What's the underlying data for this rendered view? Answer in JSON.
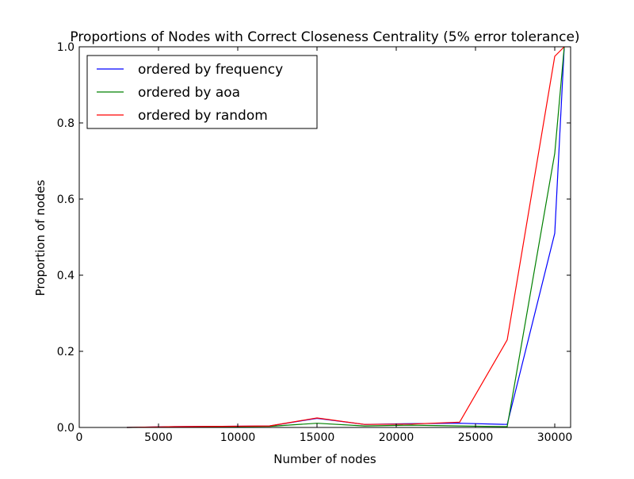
{
  "chart_data": {
    "type": "line",
    "title": "Proportions of Nodes with Correct Closeness Centrality (5% error tolerance)",
    "xlabel": "Number of nodes",
    "ylabel": "Proportion of nodes",
    "xlim": [
      0,
      31000
    ],
    "ylim": [
      0,
      1.0
    ],
    "xticks": [
      0,
      5000,
      10000,
      15000,
      20000,
      25000,
      30000
    ],
    "xtick_labels": [
      "0",
      "5000",
      "10000",
      "15000",
      "20000",
      "25000",
      "30000"
    ],
    "yticks": [
      0,
      0.2,
      0.4,
      0.6,
      0.8,
      1.0
    ],
    "ytick_labels": [
      "0.0",
      "0.2",
      "0.4",
      "0.6",
      "0.8",
      "1.0"
    ],
    "grid": false,
    "legend_position": "top-left",
    "series": [
      {
        "name": "ordered by frequency",
        "color": "#0000ff",
        "x": [
          3000,
          6000,
          9000,
          12000,
          15000,
          18000,
          21000,
          24000,
          27000,
          30000,
          30600
        ],
        "y": [
          0.0,
          0.002,
          0.003,
          0.004,
          0.024,
          0.008,
          0.01,
          0.011,
          0.008,
          0.51,
          1.0
        ]
      },
      {
        "name": "ordered by aoa",
        "color": "#008000",
        "x": [
          3000,
          6000,
          9000,
          12000,
          15000,
          18000,
          21000,
          24000,
          27000,
          30000,
          30600
        ],
        "y": [
          0.0,
          0.001,
          0.002,
          0.003,
          0.011,
          0.004,
          0.006,
          0.004,
          0.002,
          0.72,
          1.0
        ]
      },
      {
        "name": "ordered by random",
        "color": "#ff0000",
        "x": [
          3000,
          6000,
          9000,
          12000,
          15000,
          18000,
          21000,
          24000,
          27000,
          30000,
          30600
        ],
        "y": [
          0.0,
          0.002,
          0.003,
          0.004,
          0.025,
          0.008,
          0.009,
          0.014,
          0.23,
          0.975,
          1.0
        ]
      }
    ]
  }
}
